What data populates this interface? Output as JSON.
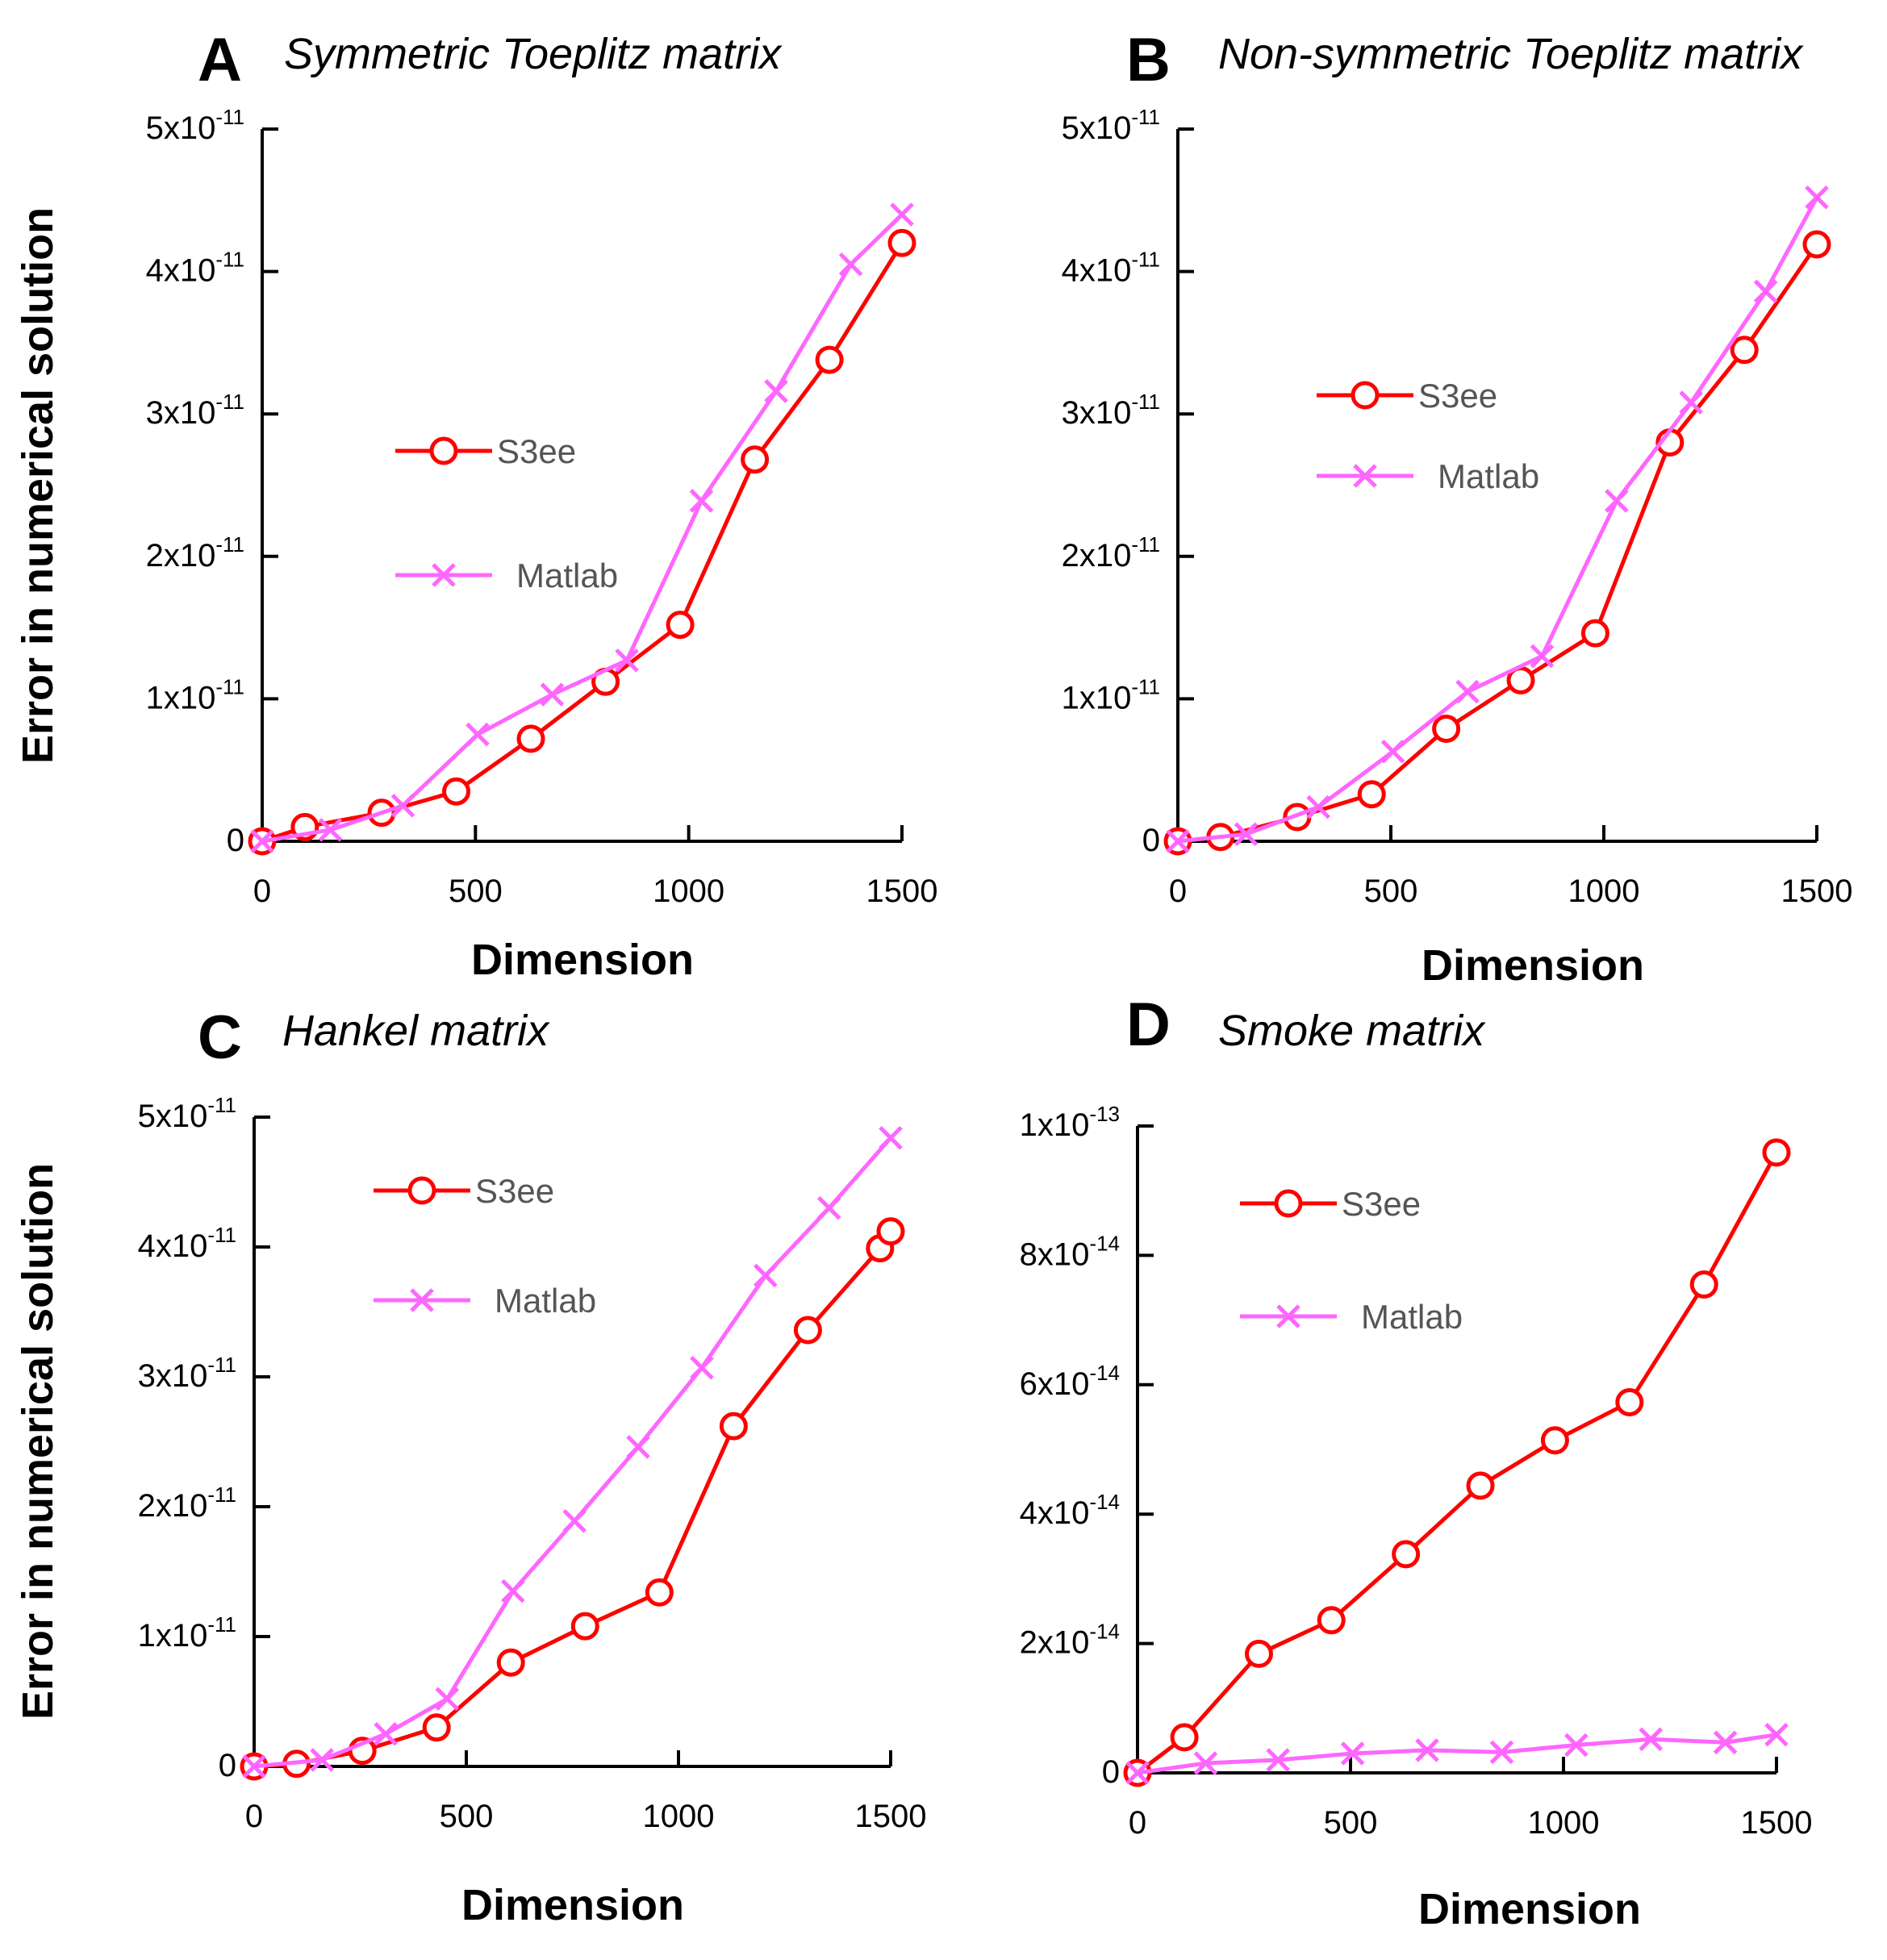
{
  "figure": {
    "y_axis_label": "Error in numerical solution",
    "x_axis_label": "Dimension"
  },
  "colors": {
    "s3ee": "#ff0000",
    "matlab": "#ff66ff"
  },
  "chart_data": [
    {
      "type": "line",
      "panel": "A",
      "title": "Symmetric Toeplitz matrix",
      "xlabel": "Dimension",
      "ylabel": "Error in numerical solution",
      "xlim": [
        0,
        1500
      ],
      "ylim": [
        0,
        5e-11
      ],
      "x_ticks": [
        "0",
        "500",
        "1000",
        "1500"
      ],
      "y_ticks": [
        [
          "0",
          ""
        ],
        [
          "1x10",
          "-11"
        ],
        [
          "2x10",
          "-11"
        ],
        [
          "3x10",
          "-11"
        ],
        [
          "4x10",
          "-11"
        ],
        [
          "5x10",
          "-11"
        ]
      ],
      "legend": [
        "S3ee",
        "Matlab"
      ],
      "series": [
        {
          "name": "S3ee",
          "marker": "circle",
          "x": [
            0,
            100,
            280,
            455,
            630,
            805,
            980,
            1155,
            1330,
            1500
          ],
          "y": [
            0,
            1e-12,
            2e-12,
            3.5e-12,
            7.2e-12,
            1.12e-11,
            1.52e-11,
            2.68e-11,
            3.38e-11,
            4.2e-11
          ]
        },
        {
          "name": "Matlab",
          "marker": "x",
          "x": [
            0,
            160,
            330,
            505,
            680,
            855,
            1030,
            1205,
            1380,
            1500
          ],
          "y": [
            0,
            8e-13,
            2.5e-12,
            7.5e-12,
            1.03e-11,
            1.27e-11,
            2.39e-11,
            3.16e-11,
            4.05e-11,
            4.4e-11
          ]
        }
      ]
    },
    {
      "type": "line",
      "panel": "B",
      "title": "Non-symmetric Toeplitz matrix",
      "xlabel": "Dimension",
      "ylabel": "",
      "xlim": [
        0,
        1500
      ],
      "ylim": [
        0,
        5e-11
      ],
      "x_ticks": [
        "0",
        "500",
        "1000",
        "1500"
      ],
      "y_ticks": [
        [
          "0",
          ""
        ],
        [
          "1x10",
          "-11"
        ],
        [
          "2x10",
          "-11"
        ],
        [
          "3x10",
          "-11"
        ],
        [
          "4x10",
          "-11"
        ],
        [
          "5x10",
          "-11"
        ]
      ],
      "legend": [
        "S3ee",
        "Matlab"
      ],
      "series": [
        {
          "name": "S3ee",
          "marker": "circle",
          "x": [
            0,
            100,
            280,
            455,
            630,
            805,
            980,
            1155,
            1330,
            1500
          ],
          "y": [
            0,
            3e-13,
            1.7e-12,
            3.3e-12,
            7.9e-12,
            1.13e-11,
            1.46e-11,
            2.8e-11,
            3.45e-11,
            4.19e-11
          ]
        },
        {
          "name": "Matlab",
          "marker": "x",
          "x": [
            0,
            160,
            330,
            505,
            680,
            855,
            1030,
            1205,
            1380,
            1500
          ],
          "y": [
            0,
            5e-13,
            2.4e-12,
            6.3e-12,
            1.05e-11,
            1.3e-11,
            2.39e-11,
            3.08e-11,
            3.86e-11,
            4.52e-11
          ]
        }
      ]
    },
    {
      "type": "line",
      "panel": "C",
      "title": "Hankel matrix",
      "xlabel": "Dimension",
      "ylabel": "Error in numerical solution",
      "xlim": [
        0,
        1500
      ],
      "ylim": [
        0,
        5e-11
      ],
      "x_ticks": [
        "0",
        "500",
        "1000",
        "1500"
      ],
      "y_ticks": [
        [
          "0",
          ""
        ],
        [
          "1x10",
          "-11"
        ],
        [
          "2x10",
          "-11"
        ],
        [
          "3x10",
          "-11"
        ],
        [
          "4x10",
          "-11"
        ],
        [
          "5x10",
          "-11"
        ]
      ],
      "legend": [
        "S3ee",
        "Matlab"
      ],
      "series": [
        {
          "name": "S3ee",
          "marker": "circle",
          "x": [
            0,
            100,
            255,
            430,
            605,
            780,
            955,
            1130,
            1305,
            1475,
            1500
          ],
          "y": [
            0,
            2e-13,
            1.2e-12,
            3e-12,
            8e-12,
            1.08e-11,
            1.34e-11,
            2.62e-11,
            3.36e-11,
            3.99e-11,
            4.12e-11
          ]
        },
        {
          "name": "Matlab",
          "marker": "x",
          "x": [
            0,
            160,
            310,
            455,
            610,
            755,
            905,
            1055,
            1205,
            1355,
            1500
          ],
          "y": [
            0,
            5e-13,
            2.5e-12,
            5.2e-12,
            1.35e-11,
            1.89e-11,
            2.46e-11,
            3.07e-11,
            3.78e-11,
            4.3e-11,
            4.84e-11
          ]
        }
      ]
    },
    {
      "type": "line",
      "panel": "D",
      "title": "Smoke matrix",
      "xlabel": "Dimension",
      "ylabel": "",
      "xlim": [
        0,
        1500
      ],
      "ylim": [
        0,
        1e-13
      ],
      "x_ticks": [
        "0",
        "500",
        "1000",
        "1500"
      ],
      "y_ticks": [
        [
          "0",
          ""
        ],
        [
          "2x10",
          "-14"
        ],
        [
          "4x10",
          "-14"
        ],
        [
          "6x10",
          "-14"
        ],
        [
          "8x10",
          "-14"
        ],
        [
          "1x10",
          "-13"
        ]
      ],
      "legend": [
        "S3ee",
        "Matlab"
      ],
      "series": [
        {
          "name": "S3ee",
          "marker": "circle",
          "x": [
            0,
            110,
            285,
            455,
            630,
            805,
            980,
            1155,
            1330,
            1500
          ],
          "y": [
            0,
            5.5e-15,
            1.84e-14,
            2.36e-14,
            3.38e-14,
            4.44e-14,
            5.14e-14,
            5.73e-14,
            7.55e-14,
            9.59e-14
          ]
        },
        {
          "name": "Matlab",
          "marker": "x",
          "x": [
            0,
            160,
            330,
            505,
            680,
            855,
            1030,
            1205,
            1380,
            1500
          ],
          "y": [
            0,
            1.5e-15,
            2e-15,
            3e-15,
            3.5e-15,
            3.2e-15,
            4.3e-15,
            5.2e-15,
            4.7e-15,
            5.9e-15
          ]
        }
      ]
    }
  ]
}
